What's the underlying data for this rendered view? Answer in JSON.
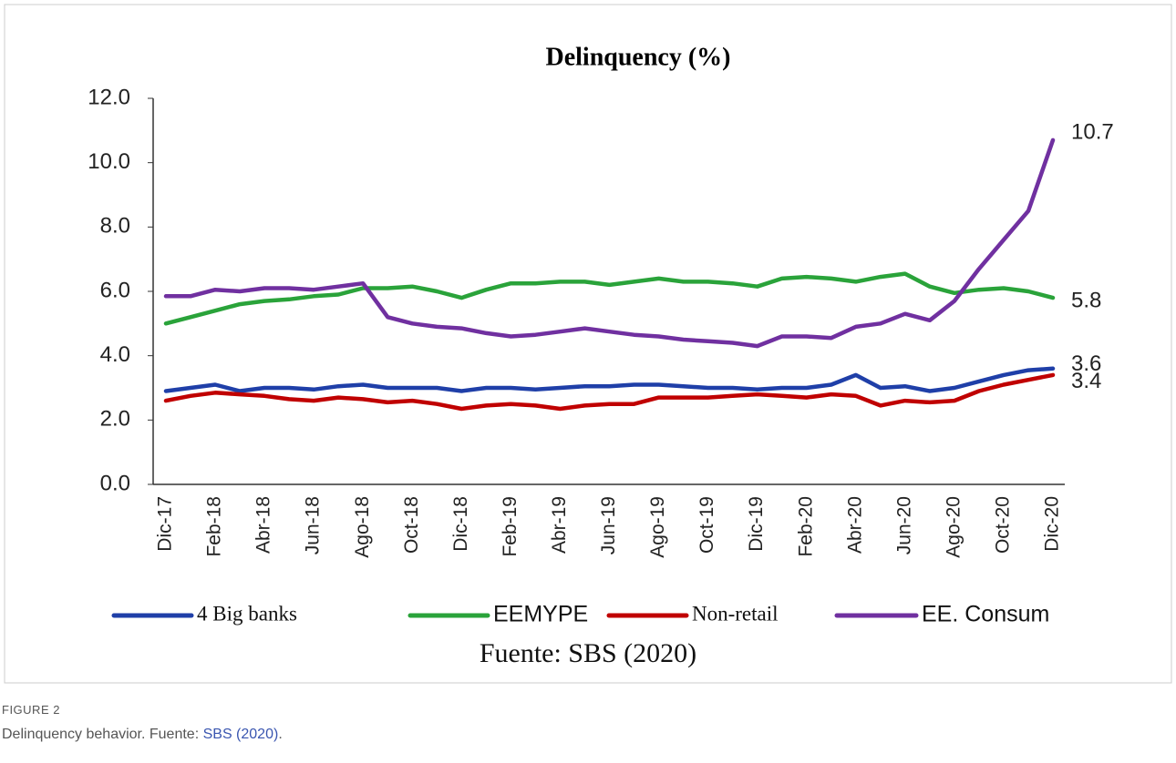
{
  "chart_data": {
    "type": "line",
    "title": "Delinquency (%)",
    "source": "Fuente: SBS (2020)",
    "categories": [
      "Dic-17",
      null,
      "Feb-18",
      null,
      "Abr-18",
      null,
      "Jun-18",
      null,
      "Ago-18",
      null,
      "Oct-18",
      null,
      "Dic-18",
      null,
      "Feb-19",
      null,
      "Abr-19",
      null,
      "Jun-19",
      null,
      "Ago-19",
      null,
      "Oct-19",
      null,
      "Dic-19",
      null,
      "Feb-20",
      null,
      "Abr-20",
      null,
      "Jun-20",
      null,
      "Ago-20",
      null,
      "Oct-20",
      null,
      "Dic-20"
    ],
    "ylim": [
      0,
      12
    ],
    "yticks": [
      {
        "value": 0,
        "label": "0.0"
      },
      {
        "value": 2,
        "label": "2.0"
      },
      {
        "value": 4,
        "label": "4.0"
      },
      {
        "value": 6,
        "label": "6.0"
      },
      {
        "value": 8,
        "label": "8.0"
      },
      {
        "value": 10,
        "label": "10.0"
      },
      {
        "value": 12,
        "label": "12.0"
      }
    ],
    "grid": false,
    "legend": "bottom",
    "series": [
      {
        "name": "4 Big banks",
        "color": "#1f3fa8",
        "values": [
          2.9,
          3.0,
          3.1,
          2.9,
          3.0,
          3.0,
          2.95,
          3.05,
          3.1,
          3.0,
          3.0,
          3.0,
          2.9,
          3.0,
          3.0,
          2.95,
          3.0,
          3.05,
          3.05,
          3.1,
          3.1,
          3.05,
          3.0,
          3.0,
          2.95,
          3.0,
          3.0,
          3.1,
          3.4,
          3.0,
          3.05,
          2.9,
          3.0,
          3.2,
          3.4,
          3.55,
          3.6
        ]
      },
      {
        "name": "EEMYPE",
        "color": "#2aa33a",
        "values": [
          5.0,
          5.2,
          5.4,
          5.6,
          5.7,
          5.75,
          5.85,
          5.9,
          6.1,
          6.1,
          6.15,
          6.0,
          5.8,
          6.05,
          6.25,
          6.25,
          6.3,
          6.3,
          6.2,
          6.3,
          6.4,
          6.3,
          6.3,
          6.25,
          6.15,
          6.4,
          6.45,
          6.4,
          6.3,
          6.45,
          6.55,
          6.15,
          5.95,
          6.05,
          6.1,
          6.0,
          5.8
        ]
      },
      {
        "name": "Non-retail",
        "color": "#c00000",
        "values": [
          2.6,
          2.75,
          2.85,
          2.8,
          2.75,
          2.65,
          2.6,
          2.7,
          2.65,
          2.55,
          2.6,
          2.5,
          2.35,
          2.45,
          2.5,
          2.45,
          2.35,
          2.45,
          2.5,
          2.5,
          2.7,
          2.7,
          2.7,
          2.75,
          2.8,
          2.75,
          2.7,
          2.8,
          2.75,
          2.45,
          2.6,
          2.55,
          2.6,
          2.9,
          3.1,
          3.25,
          3.4
        ]
      },
      {
        "name": "EE. Consum",
        "color": "#7030a0",
        "values": [
          5.85,
          5.85,
          6.05,
          6.0,
          6.1,
          6.1,
          6.05,
          6.15,
          6.25,
          5.2,
          5.0,
          4.9,
          4.85,
          4.7,
          4.6,
          4.65,
          4.75,
          4.85,
          4.75,
          4.65,
          4.6,
          4.5,
          4.45,
          4.4,
          4.3,
          4.6,
          4.6,
          4.55,
          4.9,
          5.0,
          5.3,
          5.1,
          5.7,
          6.7,
          7.6,
          8.5,
          10.7
        ]
      }
    ]
  },
  "figure": {
    "label": "FIGURE 2",
    "caption": "Delinquency behavior. Fuente: ",
    "caption_link": "SBS (2020)",
    "caption_end": "."
  }
}
